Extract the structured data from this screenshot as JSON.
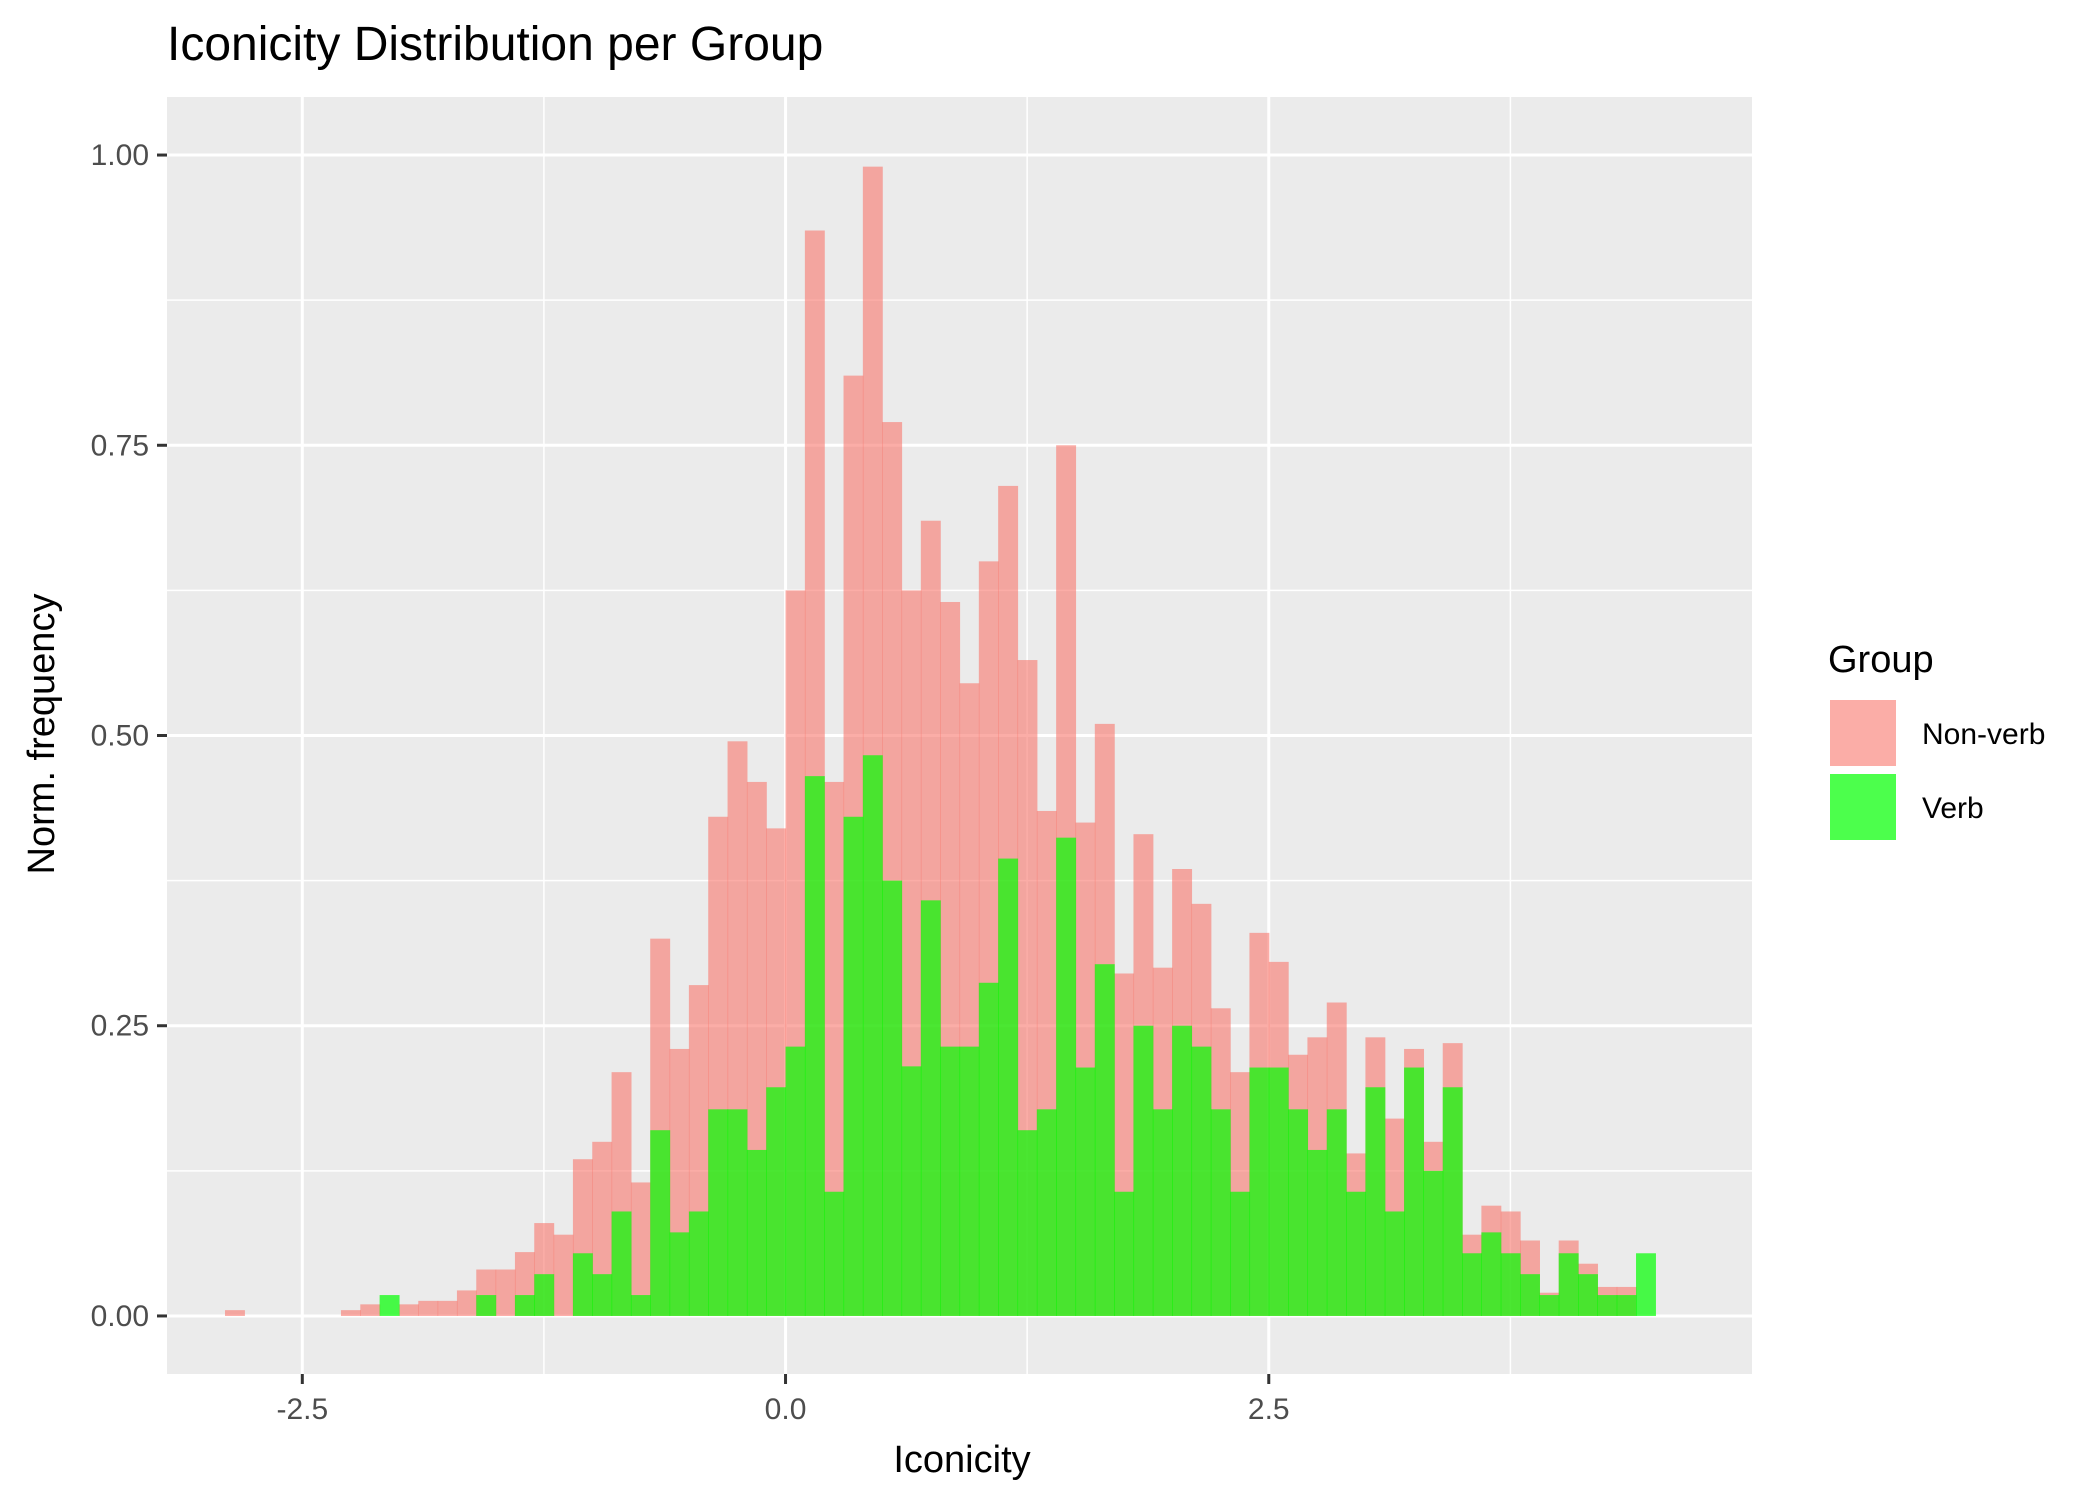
{
  "chart_data": {
    "type": "bar",
    "subtype": "overlapping-histogram",
    "title": "Iconicity Distribution per Group",
    "xlabel": "Iconicity",
    "ylabel": "Norm. frequency",
    "xlim": [
      -3.2,
      5.0
    ],
    "ylim": [
      -0.05,
      1.05
    ],
    "x_ticks": [
      -2.5,
      0.0,
      2.5
    ],
    "x_tick_labels": [
      "-2.5",
      "0.0",
      "2.5"
    ],
    "y_ticks": [
      0.0,
      0.25,
      0.5,
      0.75,
      1.0
    ],
    "y_tick_labels": [
      "0.00",
      "0.25",
      "0.50",
      "0.75",
      "1.00"
    ],
    "bin_width": 0.1,
    "grid": true,
    "legend": {
      "title": "Group",
      "position": "right"
    },
    "series": [
      {
        "name": "Non-verb",
        "color": "#f8766d",
        "bins": [
          [
            -2.85,
            0.005
          ],
          [
            -2.25,
            0.005
          ],
          [
            -2.15,
            0.01
          ],
          [
            -1.95,
            0.01
          ],
          [
            -1.85,
            0.013
          ],
          [
            -1.75,
            0.013
          ],
          [
            -1.65,
            0.022
          ],
          [
            -1.55,
            0.04
          ],
          [
            -1.45,
            0.04
          ],
          [
            -1.35,
            0.055
          ],
          [
            -1.25,
            0.08
          ],
          [
            -1.15,
            0.07
          ],
          [
            -1.05,
            0.135
          ],
          [
            -0.95,
            0.15
          ],
          [
            -0.85,
            0.21
          ],
          [
            -0.75,
            0.115
          ],
          [
            -0.65,
            0.325
          ],
          [
            -0.55,
            0.23
          ],
          [
            -0.45,
            0.285
          ],
          [
            -0.35,
            0.43
          ],
          [
            -0.25,
            0.495
          ],
          [
            -0.15,
            0.46
          ],
          [
            -0.05,
            0.42
          ],
          [
            0.05,
            0.625
          ],
          [
            0.15,
            0.935
          ],
          [
            0.25,
            0.46
          ],
          [
            0.35,
            0.81
          ],
          [
            0.45,
            0.99
          ],
          [
            0.55,
            0.77
          ],
          [
            0.65,
            0.625
          ],
          [
            0.75,
            0.685
          ],
          [
            0.85,
            0.615
          ],
          [
            0.95,
            0.545
          ],
          [
            1.05,
            0.65
          ],
          [
            1.15,
            0.715
          ],
          [
            1.25,
            0.565
          ],
          [
            1.35,
            0.435
          ],
          [
            1.45,
            0.75
          ],
          [
            1.55,
            0.425
          ],
          [
            1.65,
            0.51
          ],
          [
            1.75,
            0.295
          ],
          [
            1.85,
            0.415
          ],
          [
            1.95,
            0.3
          ],
          [
            2.05,
            0.385
          ],
          [
            2.15,
            0.355
          ],
          [
            2.25,
            0.265
          ],
          [
            2.35,
            0.21
          ],
          [
            2.45,
            0.33
          ],
          [
            2.55,
            0.305
          ],
          [
            2.65,
            0.225
          ],
          [
            2.75,
            0.24
          ],
          [
            2.85,
            0.27
          ],
          [
            2.95,
            0.14
          ],
          [
            3.05,
            0.24
          ],
          [
            3.15,
            0.17
          ],
          [
            3.25,
            0.23
          ],
          [
            3.35,
            0.15
          ],
          [
            3.45,
            0.235
          ],
          [
            3.55,
            0.07
          ],
          [
            3.65,
            0.095
          ],
          [
            3.75,
            0.09
          ],
          [
            3.85,
            0.065
          ],
          [
            3.95,
            0.02
          ],
          [
            4.05,
            0.065
          ],
          [
            4.15,
            0.045
          ],
          [
            4.25,
            0.025
          ],
          [
            4.35,
            0.025
          ]
        ]
      },
      {
        "name": "Verb",
        "color": "#00ff00",
        "bins": [
          [
            -2.05,
            0.018
          ],
          [
            -1.55,
            0.018
          ],
          [
            -1.35,
            0.018
          ],
          [
            -1.25,
            0.036
          ],
          [
            -1.05,
            0.054
          ],
          [
            -0.95,
            0.036
          ],
          [
            -0.85,
            0.09
          ],
          [
            -0.75,
            0.018
          ],
          [
            -0.65,
            0.16
          ],
          [
            -0.55,
            0.072
          ],
          [
            -0.45,
            0.09
          ],
          [
            -0.35,
            0.178
          ],
          [
            -0.25,
            0.178
          ],
          [
            -0.15,
            0.143
          ],
          [
            -0.05,
            0.197
          ],
          [
            0.05,
            0.232
          ],
          [
            0.15,
            0.465
          ],
          [
            0.25,
            0.107
          ],
          [
            0.35,
            0.43
          ],
          [
            0.45,
            0.483
          ],
          [
            0.55,
            0.375
          ],
          [
            0.65,
            0.215
          ],
          [
            0.75,
            0.358
          ],
          [
            0.85,
            0.232
          ],
          [
            0.95,
            0.232
          ],
          [
            1.05,
            0.287
          ],
          [
            1.15,
            0.394
          ],
          [
            1.25,
            0.16
          ],
          [
            1.35,
            0.178
          ],
          [
            1.45,
            0.412
          ],
          [
            1.55,
            0.214
          ],
          [
            1.65,
            0.303
          ],
          [
            1.75,
            0.107
          ],
          [
            1.85,
            0.25
          ],
          [
            1.95,
            0.178
          ],
          [
            2.05,
            0.25
          ],
          [
            2.15,
            0.232
          ],
          [
            2.25,
            0.178
          ],
          [
            2.35,
            0.107
          ],
          [
            2.45,
            0.214
          ],
          [
            2.55,
            0.214
          ],
          [
            2.65,
            0.178
          ],
          [
            2.75,
            0.143
          ],
          [
            2.85,
            0.178
          ],
          [
            2.95,
            0.107
          ],
          [
            3.05,
            0.197
          ],
          [
            3.15,
            0.09
          ],
          [
            3.25,
            0.214
          ],
          [
            3.35,
            0.125
          ],
          [
            3.45,
            0.197
          ],
          [
            3.55,
            0.054
          ],
          [
            3.65,
            0.072
          ],
          [
            3.75,
            0.054
          ],
          [
            3.85,
            0.036
          ],
          [
            3.95,
            0.018
          ],
          [
            4.05,
            0.054
          ],
          [
            4.15,
            0.036
          ],
          [
            4.25,
            0.018
          ],
          [
            4.35,
            0.018
          ],
          [
            4.45,
            0.054
          ]
        ]
      }
    ]
  }
}
